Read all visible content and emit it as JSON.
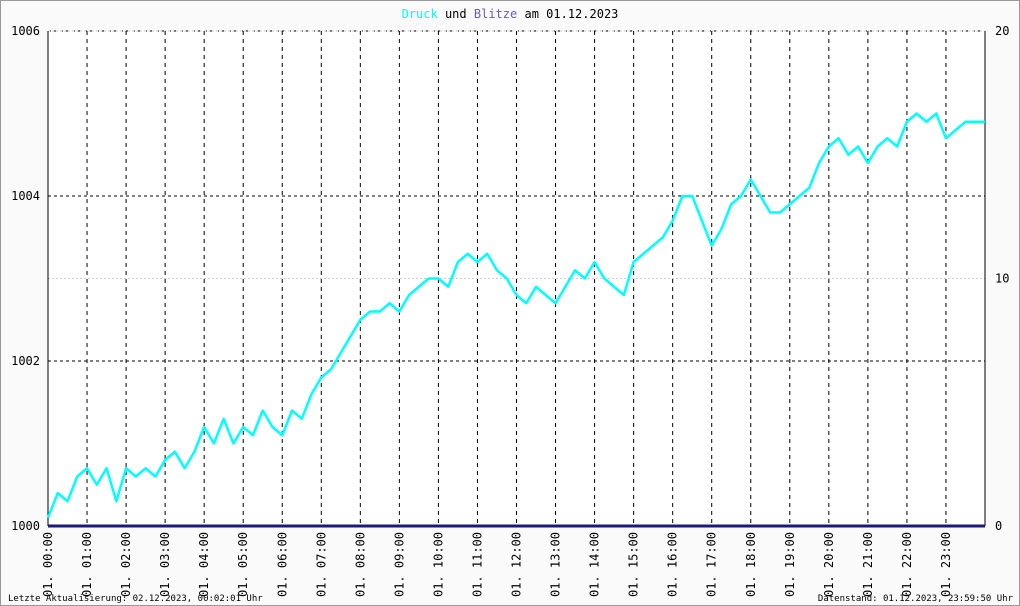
{
  "chart_data": {
    "type": "line",
    "title_connector": "und",
    "title_suffix": "am 01.12.2023",
    "footer_left": "Letzte Aktualisierung: 02.12.2023, 00:02:01 Uhr",
    "footer_right": "Datenstand: 01.12.2023, 23:59:50 Uhr",
    "grid": true,
    "xlim": [
      0,
      24
    ],
    "xticks": [
      {
        "value": 0,
        "label": "01. 00:00"
      },
      {
        "value": 1,
        "label": "01. 01:00"
      },
      {
        "value": 2,
        "label": "01. 02:00"
      },
      {
        "value": 3,
        "label": "01. 03:00"
      },
      {
        "value": 4,
        "label": "01. 04:00"
      },
      {
        "value": 5,
        "label": "01. 05:00"
      },
      {
        "value": 6,
        "label": "01. 06:00"
      },
      {
        "value": 7,
        "label": "01. 07:00"
      },
      {
        "value": 8,
        "label": "01. 08:00"
      },
      {
        "value": 9,
        "label": "01. 09:00"
      },
      {
        "value": 10,
        "label": "01. 10:00"
      },
      {
        "value": 11,
        "label": "01. 11:00"
      },
      {
        "value": 12,
        "label": "01. 12:00"
      },
      {
        "value": 13,
        "label": "01. 13:00"
      },
      {
        "value": 14,
        "label": "01. 14:00"
      },
      {
        "value": 15,
        "label": "01. 15:00"
      },
      {
        "value": 16,
        "label": "01. 16:00"
      },
      {
        "value": 17,
        "label": "01. 17:00"
      },
      {
        "value": 18,
        "label": "01. 18:00"
      },
      {
        "value": 19,
        "label": "01. 19:00"
      },
      {
        "value": 20,
        "label": "01. 20:00"
      },
      {
        "value": 21,
        "label": "01. 21:00"
      },
      {
        "value": 22,
        "label": "01. 22:00"
      },
      {
        "value": 23,
        "label": "01. 23:00"
      }
    ],
    "ylim": [
      1000,
      1006
    ],
    "yticks": [
      1000,
      1002,
      1004,
      1006
    ],
    "y2lim": [
      0,
      20
    ],
    "y2ticks": [
      0,
      10,
      20
    ],
    "x": [
      0,
      0.25,
      0.5,
      0.75,
      1,
      1.25,
      1.5,
      1.75,
      2,
      2.25,
      2.5,
      2.75,
      3,
      3.25,
      3.5,
      3.75,
      4,
      4.25,
      4.5,
      4.75,
      5,
      5.25,
      5.5,
      5.75,
      6,
      6.25,
      6.5,
      6.75,
      7,
      7.25,
      7.5,
      7.75,
      8,
      8.25,
      8.5,
      8.75,
      9,
      9.25,
      9.5,
      9.75,
      10,
      10.25,
      10.5,
      10.75,
      11,
      11.25,
      11.5,
      11.75,
      12,
      12.25,
      12.5,
      12.75,
      13,
      13.25,
      13.5,
      13.75,
      14,
      14.25,
      14.5,
      14.75,
      15,
      15.25,
      15.5,
      15.75,
      16,
      16.25,
      16.5,
      16.75,
      17,
      17.25,
      17.5,
      17.75,
      18,
      18.25,
      18.5,
      18.75,
      19,
      19.25,
      19.5,
      19.75,
      20,
      20.25,
      20.5,
      20.75,
      21,
      21.25,
      21.5,
      21.75,
      22,
      22.25,
      22.5,
      22.75,
      23,
      23.25,
      23.5,
      23.75,
      24
    ],
    "series": [
      {
        "name": "Druck",
        "color": "#00ffff",
        "values": [
          1000.1,
          1000.4,
          1000.3,
          1000.6,
          1000.7,
          1000.5,
          1000.7,
          1000.3,
          1000.7,
          1000.6,
          1000.7,
          1000.6,
          1000.8,
          1000.9,
          1000.7,
          1000.9,
          1001.2,
          1001.0,
          1001.3,
          1001.0,
          1001.2,
          1001.1,
          1001.4,
          1001.2,
          1001.1,
          1001.4,
          1001.3,
          1001.6,
          1001.8,
          1001.9,
          1002.1,
          1002.3,
          1002.5,
          1002.6,
          1002.6,
          1002.7,
          1002.6,
          1002.8,
          1002.9,
          1003.0,
          1003.0,
          1002.9,
          1003.2,
          1003.3,
          1003.2,
          1003.3,
          1003.1,
          1003.0,
          1002.8,
          1002.7,
          1002.9,
          1002.8,
          1002.7,
          1002.9,
          1003.1,
          1003.0,
          1003.2,
          1003.0,
          1002.9,
          1002.8,
          1003.2,
          1003.3,
          1003.4,
          1003.5,
          1003.7,
          1004.0,
          1004.0,
          1003.7,
          1003.4,
          1003.6,
          1003.9,
          1004.0,
          1004.2,
          1004.0,
          1003.8,
          1003.8,
          1003.9,
          1004.0,
          1004.1,
          1004.4,
          1004.6,
          1004.7,
          1004.5,
          1004.6,
          1004.4,
          1004.6,
          1004.7,
          1004.6,
          1004.9,
          1005.0,
          1004.9,
          1005.0,
          1004.7,
          1004.8,
          1004.9,
          1004.9,
          1004.9
        ]
      },
      {
        "name": "Blitze",
        "color": "#1a1a7a",
        "axis": "y2",
        "values": [
          0,
          0,
          0,
          0,
          0,
          0,
          0,
          0,
          0,
          0,
          0,
          0,
          0,
          0,
          0,
          0,
          0,
          0,
          0,
          0,
          0,
          0,
          0,
          0,
          0,
          0,
          0,
          0,
          0,
          0,
          0,
          0,
          0,
          0,
          0,
          0,
          0,
          0,
          0,
          0,
          0,
          0,
          0,
          0,
          0,
          0,
          0,
          0,
          0,
          0,
          0,
          0,
          0,
          0,
          0,
          0,
          0,
          0,
          0,
          0,
          0,
          0,
          0,
          0,
          0,
          0,
          0,
          0,
          0,
          0,
          0,
          0,
          0,
          0,
          0,
          0,
          0,
          0,
          0,
          0,
          0,
          0,
          0,
          0,
          0,
          0,
          0,
          0,
          0,
          0,
          0,
          0,
          0,
          0,
          0,
          0,
          0
        ]
      }
    ]
  }
}
